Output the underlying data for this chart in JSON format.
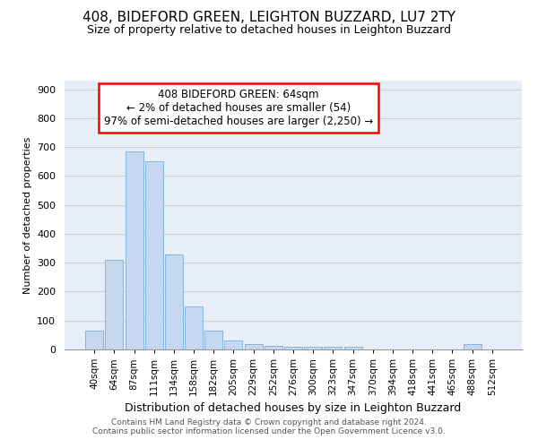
{
  "title_line1": "408, BIDEFORD GREEN, LEIGHTON BUZZARD, LU7 2TY",
  "title_line2": "Size of property relative to detached houses in Leighton Buzzard",
  "xlabel": "Distribution of detached houses by size in Leighton Buzzard",
  "ylabel": "Number of detached properties",
  "footer_line1": "Contains HM Land Registry data © Crown copyright and database right 2024.",
  "footer_line2": "Contains public sector information licensed under the Open Government Licence v3.0.",
  "bins": [
    "40sqm",
    "64sqm",
    "87sqm",
    "111sqm",
    "134sqm",
    "158sqm",
    "182sqm",
    "205sqm",
    "229sqm",
    "252sqm",
    "276sqm",
    "300sqm",
    "323sqm",
    "347sqm",
    "370sqm",
    "394sqm",
    "418sqm",
    "441sqm",
    "465sqm",
    "488sqm",
    "512sqm"
  ],
  "values": [
    64,
    310,
    685,
    650,
    330,
    150,
    65,
    32,
    18,
    12,
    10,
    9,
    8,
    8,
    0,
    0,
    0,
    0,
    0,
    18,
    0
  ],
  "bar_color": "#c5d8f0",
  "bar_edge_color": "#7aadd4",
  "annotation_box_text_line1": "408 BIDEFORD GREEN: 64sqm",
  "annotation_box_text_line2": "← 2% of detached houses are smaller (54)",
  "annotation_box_text_line3": "97% of semi-detached houses are larger (2,250) →",
  "annotation_box_color": "white",
  "annotation_box_edge_color": "red",
  "ylim": [
    0,
    930
  ],
  "yticks": [
    0,
    100,
    200,
    300,
    400,
    500,
    600,
    700,
    800,
    900
  ],
  "grid_color": "#cccccc",
  "bg_color": "#e8eef8",
  "title1_fontsize": 11,
  "title2_fontsize": 9,
  "xlabel_fontsize": 9,
  "ylabel_fontsize": 8,
  "footer_fontsize": 6.5
}
